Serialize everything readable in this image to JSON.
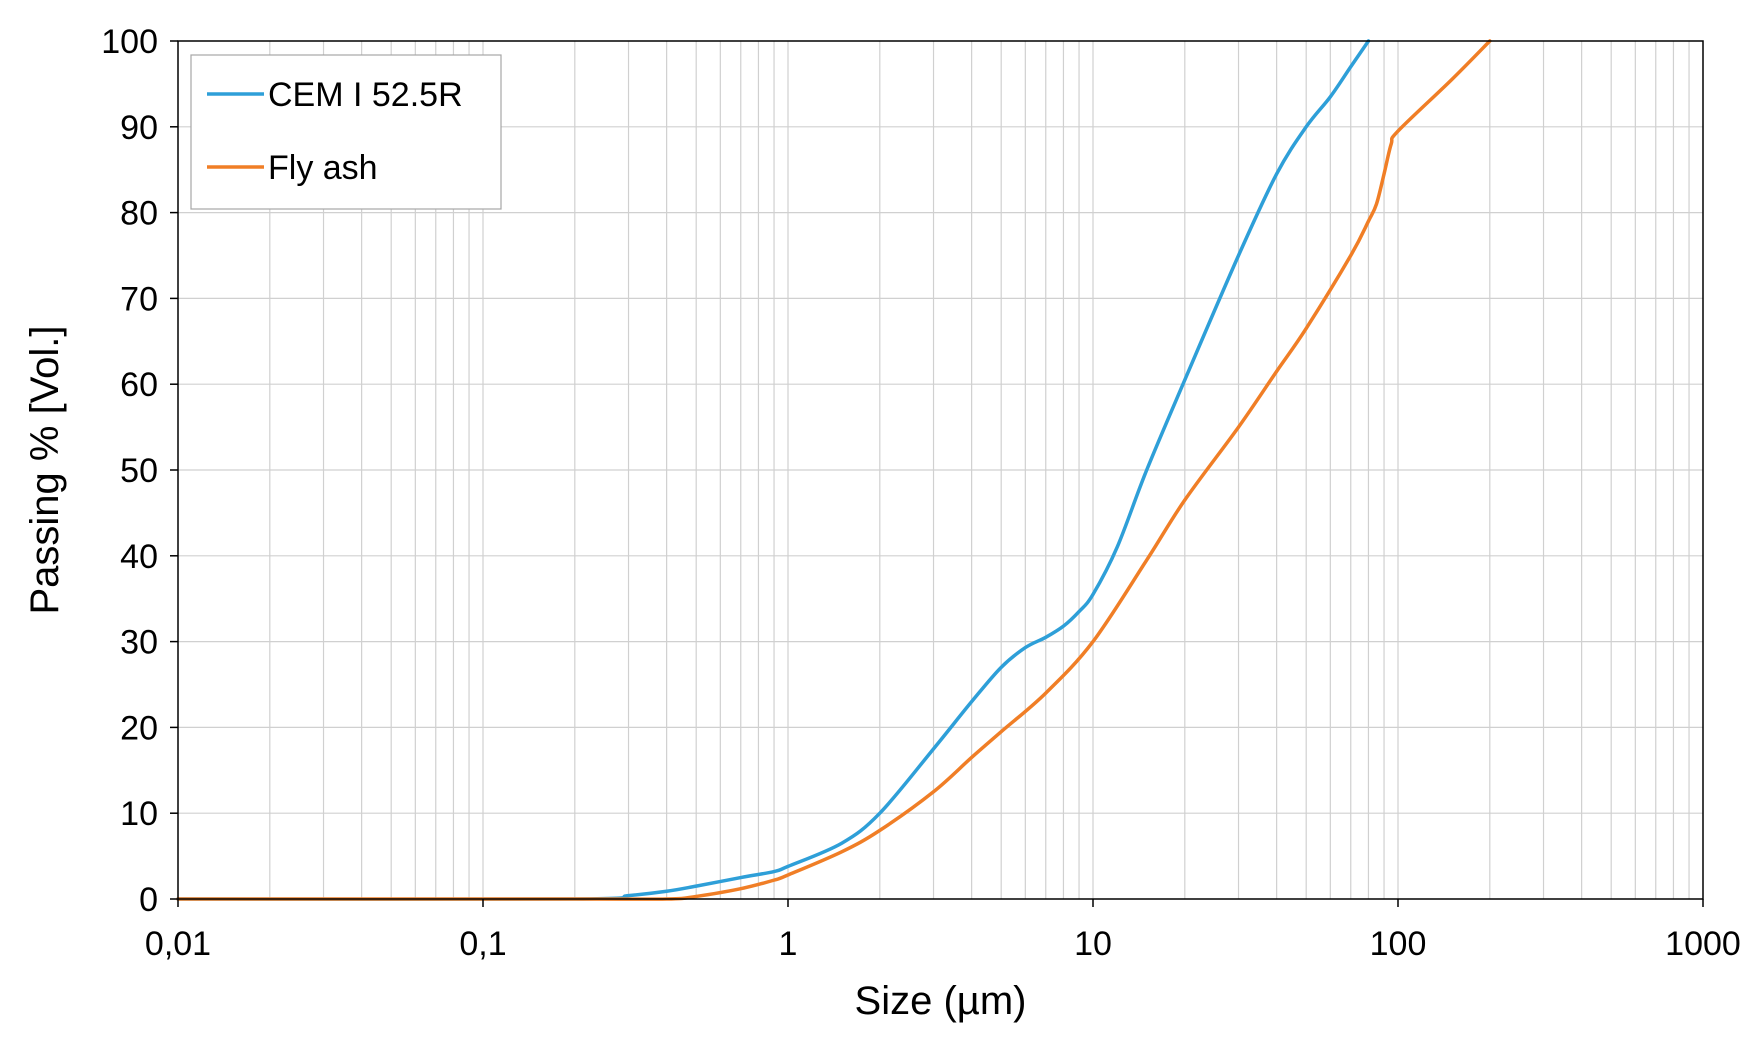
{
  "chart_data": {
    "type": "line",
    "title": "",
    "xlabel": "Size (µm)",
    "ylabel": "Passing % [Vol.]",
    "x_scale": "log",
    "xlim": [
      0.01,
      1000
    ],
    "ylim": [
      0,
      100
    ],
    "x_ticks": [
      0.01,
      0.1,
      1,
      10,
      100,
      1000
    ],
    "x_tick_labels": [
      "0,01",
      "0,1",
      "1",
      "10",
      "100",
      "1000"
    ],
    "y_ticks": [
      0,
      10,
      20,
      30,
      40,
      50,
      60,
      70,
      80,
      90,
      100
    ],
    "y_tick_labels": [
      "0",
      "10",
      "20",
      "30",
      "40",
      "50",
      "60",
      "70",
      "80",
      "90",
      "100"
    ],
    "grid": true,
    "legend_position": "top-left",
    "series": [
      {
        "name": "CEM I 52.5R",
        "color": "#2E9FD8",
        "points": [
          [
            0.01,
            0
          ],
          [
            0.2,
            0
          ],
          [
            0.3,
            0.4
          ],
          [
            0.4,
            0.9
          ],
          [
            0.5,
            1.5
          ],
          [
            0.7,
            2.5
          ],
          [
            0.9,
            3.2
          ],
          [
            1.0,
            3.8
          ],
          [
            1.5,
            6.5
          ],
          [
            2.0,
            10
          ],
          [
            3.0,
            17.5
          ],
          [
            4.0,
            23
          ],
          [
            5.0,
            27
          ],
          [
            6.0,
            29.3
          ],
          [
            7.0,
            30.5
          ],
          [
            8.0,
            31.8
          ],
          [
            9.0,
            33.5
          ],
          [
            10.0,
            35.5
          ],
          [
            12.0,
            41
          ],
          [
            15.0,
            50
          ],
          [
            20.0,
            60.5
          ],
          [
            30.0,
            75
          ],
          [
            40.0,
            84.5
          ],
          [
            50.0,
            90
          ],
          [
            60.0,
            93.5
          ],
          [
            70.0,
            97
          ],
          [
            80.0,
            100
          ]
        ]
      },
      {
        "name": "Fly ash",
        "color": "#F07E26",
        "points": [
          [
            0.01,
            0
          ],
          [
            0.2,
            0
          ],
          [
            0.4,
            0
          ],
          [
            0.5,
            0.3
          ],
          [
            0.7,
            1.2
          ],
          [
            0.9,
            2.2
          ],
          [
            1.0,
            2.8
          ],
          [
            1.5,
            5.5
          ],
          [
            2.0,
            8
          ],
          [
            3.0,
            12.5
          ],
          [
            4.0,
            16.5
          ],
          [
            5.0,
            19.5
          ],
          [
            7.0,
            24
          ],
          [
            10.0,
            30
          ],
          [
            15.0,
            39.5
          ],
          [
            20.0,
            46.5
          ],
          [
            30.0,
            55
          ],
          [
            40.0,
            61.5
          ],
          [
            50.0,
            66.5
          ],
          [
            70.0,
            75
          ],
          [
            80.0,
            79
          ],
          [
            85.0,
            81
          ],
          [
            90.0,
            84.5
          ],
          [
            95.0,
            88
          ],
          [
            100.0,
            89.5
          ],
          [
            150.0,
            95.5
          ],
          [
            200.0,
            100
          ]
        ]
      }
    ]
  }
}
